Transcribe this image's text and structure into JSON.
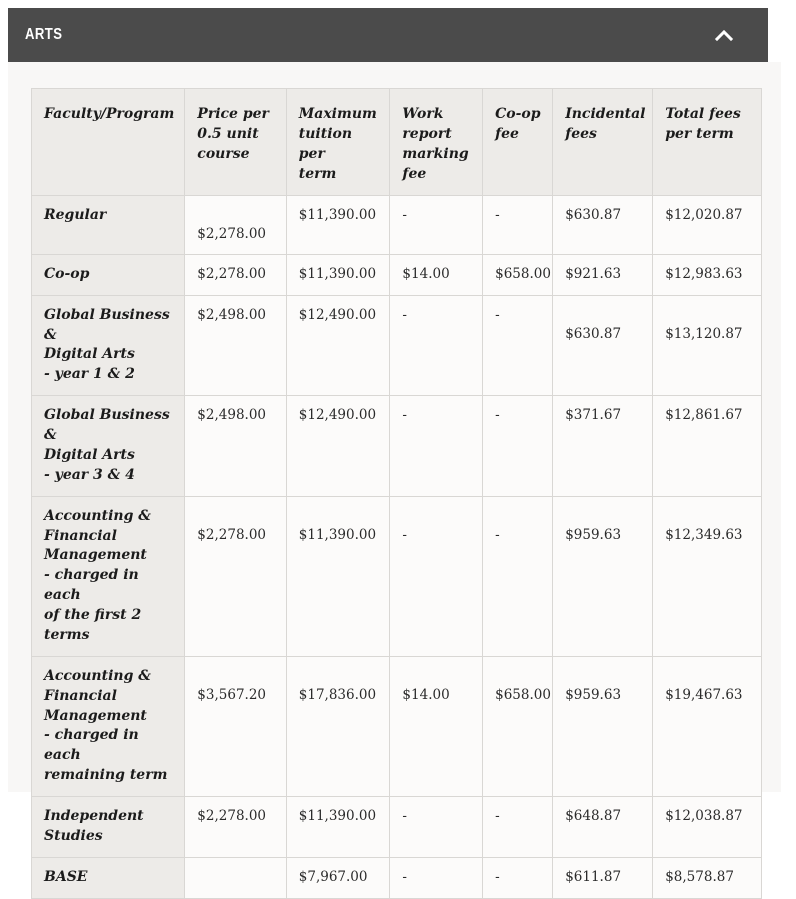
{
  "accordion": {
    "title": "ARTS",
    "state": "expanded",
    "icon": "chevron-up-icon"
  },
  "colors": {
    "bar_background": "#4b4b4b",
    "bar_text": "#ffffff",
    "panel_background": "#f8f7f6",
    "header_cell_background": "#edebe8",
    "body_cell_background": "#fcfbfa",
    "border": "#d9d7d4"
  },
  "table": {
    "columns": [
      "Faculty/Program",
      "Price per\n0.5 unit\ncourse",
      "Maximum\ntuition per\nterm",
      "Work\nreport\nmarking\nfee",
      "Co-op\nfee",
      "Incidental\nfees",
      "Total fees\nper term"
    ],
    "rows": [
      {
        "program": "Regular",
        "values": [
          "\n$2,278.00",
          "$11,390.00",
          "-",
          "-",
          "$630.87",
          "$12,020.87"
        ]
      },
      {
        "program": "Co-op",
        "values": [
          "$2,278.00",
          "$11,390.00",
          "$14.00",
          "$658.00",
          "$921.63",
          "$12,983.63"
        ]
      },
      {
        "program": "Global Business &\nDigital Arts\n- year 1 & 2",
        "values": [
          "$2,498.00",
          "$12,490.00",
          "-",
          "-",
          "\n$630.87",
          "\n$13,120.87"
        ]
      },
      {
        "program": "Global Business &\nDigital Arts\n- year 3 & 4",
        "values": [
          "$2,498.00",
          "$12,490.00",
          "-",
          "-",
          "$371.67",
          "$12,861.67"
        ]
      },
      {
        "program": "Accounting &\nFinancial\nManagement\n- charged in each\nof the first 2\nterms",
        "values": [
          "\n$2,278.00",
          "\n$11,390.00",
          "\n-",
          "\n-",
          "\n$959.63",
          "\n$12,349.63"
        ]
      },
      {
        "program": "Accounting &\nFinancial\nManagement\n- charged in each\nremaining term",
        "values": [
          "\n$3,567.20",
          "\n$17,836.00",
          "\n$14.00",
          "\n$658.00",
          "\n$959.63",
          "\n$19,467.63"
        ]
      },
      {
        "program": "Independent\nStudies",
        "values": [
          "$2,278.00",
          "$11,390.00",
          "-",
          "-",
          "$648.87",
          "$12,038.87"
        ]
      },
      {
        "program": "BASE",
        "values": [
          "",
          "$7,967.00",
          "-",
          "-",
          "$611.87",
          "$8,578.87"
        ]
      }
    ]
  }
}
